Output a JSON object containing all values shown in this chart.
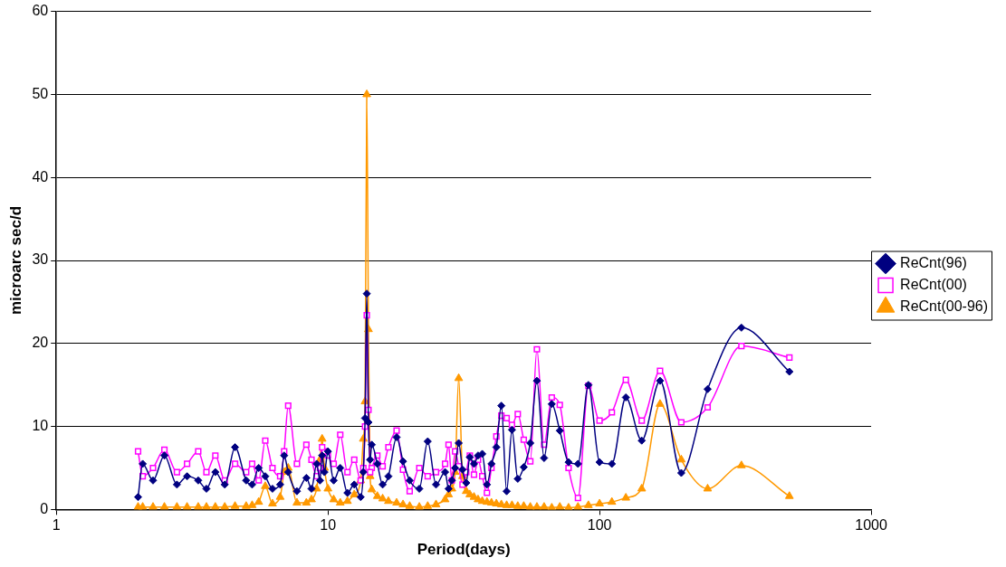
{
  "chart_data": {
    "type": "line",
    "xlabel": "Period(days)",
    "ylabel": "microarc sec/d",
    "log": "x",
    "xlim": [
      1,
      1000
    ],
    "xticks": [
      1,
      10,
      100,
      1000
    ],
    "ylim": [
      0,
      60
    ],
    "yticks": [
      0,
      10,
      20,
      30,
      40,
      50,
      60
    ],
    "grid": "y",
    "legend": "right",
    "line_style": "solid",
    "x": [
      500,
      333,
      250,
      200,
      167,
      143,
      125,
      111,
      100,
      91,
      83.3,
      76.9,
      71.4,
      66.7,
      62.5,
      58.8,
      55.6,
      52.6,
      50,
      47.6,
      45.5,
      43.5,
      41.7,
      40,
      38.5,
      37,
      35.7,
      34.5,
      33.3,
      32.3,
      31.3,
      30.3,
      29.4,
      28.6,
      27.8,
      27,
      25,
      23.3,
      21.7,
      20,
      18.9,
      17.9,
      16.7,
      15.9,
      15.2,
      14.5,
      14.3,
      14.1,
      13.9,
      13.7,
      13.5,
      13.2,
      12.5,
      11.8,
      11.1,
      10.5,
      10,
      9.71,
      9.52,
      9.35,
      9.09,
      8.7,
      8.33,
      7.69,
      7.14,
      6.9,
      6.67,
      6.25,
      5.88,
      5.56,
      5.26,
      5,
      4.55,
      4.17,
      3.85,
      3.57,
      3.33,
      3.03,
      2.78,
      2.5,
      2.27,
      2.08,
      2
    ],
    "series": [
      {
        "name": "ReCnt(96)",
        "color": "#000080",
        "marker": "diamond",
        "values": [
          16.6,
          21.9,
          14.5,
          4.4,
          15.5,
          8.3,
          13.5,
          5.5,
          5.7,
          15.0,
          5.5,
          5.7,
          9.5,
          12.7,
          6.2,
          15.5,
          8.0,
          5.1,
          3.7,
          9.6,
          2.2,
          12.5,
          7.5,
          5.5,
          3.0,
          6.7,
          6.5,
          5.5,
          6.3,
          3.2,
          4.8,
          8.0,
          5.0,
          3.5,
          2.5,
          4.5,
          3.0,
          8.2,
          2.5,
          3.5,
          5.8,
          8.7,
          4.0,
          3.0,
          5.5,
          7.8,
          6.0,
          10.5,
          26.0,
          11.0,
          4.5,
          1.5,
          3.0,
          2.0,
          5.0,
          3.5,
          7.0,
          4.5,
          6.5,
          3.5,
          5.5,
          2.5,
          3.8,
          2.2,
          4.5,
          6.5,
          3.0,
          2.5,
          4.0,
          5.0,
          3.0,
          3.5,
          7.5,
          3.0,
          4.5,
          2.5,
          3.5,
          4.0,
          3.0,
          6.5,
          3.5,
          5.5,
          1.5
        ]
      },
      {
        "name": "ReCnt(00)",
        "color": "#ff00ff",
        "marker": "square",
        "values": [
          18.3,
          19.7,
          12.3,
          10.5,
          16.7,
          10.7,
          15.6,
          11.7,
          10.7,
          14.9,
          1.4,
          5.0,
          12.6,
          13.5,
          7.8,
          19.3,
          5.8,
          8.4,
          11.5,
          10.2,
          11.0,
          11.3,
          8.8,
          5.0,
          2.0,
          4.0,
          6.0,
          4.2,
          6.5,
          4.5,
          3.0,
          5.2,
          7.0,
          3.5,
          7.8,
          5.5,
          4.5,
          4.0,
          5.0,
          2.2,
          4.8,
          9.5,
          7.5,
          5.2,
          6.5,
          5.0,
          4.5,
          12.0,
          23.4,
          10.0,
          5.0,
          3.5,
          6.0,
          4.5,
          9.0,
          5.5,
          6.5,
          7.0,
          7.5,
          5.0,
          4.0,
          6.0,
          7.8,
          5.5,
          12.5,
          7.0,
          4.0,
          5.0,
          8.3,
          3.5,
          5.5,
          4.5,
          5.5,
          3.5,
          6.5,
          4.5,
          7.0,
          5.5,
          4.5,
          7.2,
          5.0,
          4.0,
          7.0
        ]
      },
      {
        "name": "ReCnt(00-96)",
        "color": "#ff9900",
        "marker": "triangle",
        "values": [
          1.6,
          5.3,
          2.5,
          6.0,
          12.7,
          2.5,
          1.4,
          0.9,
          0.7,
          0.5,
          0.3,
          0.2,
          0.3,
          0.2,
          0.3,
          0.3,
          0.3,
          0.4,
          0.4,
          0.5,
          0.5,
          0.6,
          0.7,
          0.8,
          0.9,
          1.0,
          1.2,
          1.5,
          1.8,
          2.2,
          4.0,
          15.8,
          4.5,
          2.5,
          1.8,
          1.2,
          0.6,
          0.4,
          0.3,
          0.4,
          0.6,
          0.8,
          1.0,
          1.3,
          1.6,
          2.4,
          4.0,
          21.7,
          50.0,
          13.0,
          8.5,
          3.5,
          1.8,
          1.0,
          0.8,
          1.2,
          2.5,
          5.0,
          8.5,
          6.0,
          2.5,
          1.2,
          0.8,
          0.8,
          5.0,
          4.5,
          1.5,
          0.7,
          2.8,
          0.9,
          0.5,
          0.4,
          0.4,
          0.3,
          0.3,
          0.3,
          0.3,
          0.3,
          0.3,
          0.3,
          0.3,
          0.3,
          0.3
        ]
      }
    ]
  }
}
